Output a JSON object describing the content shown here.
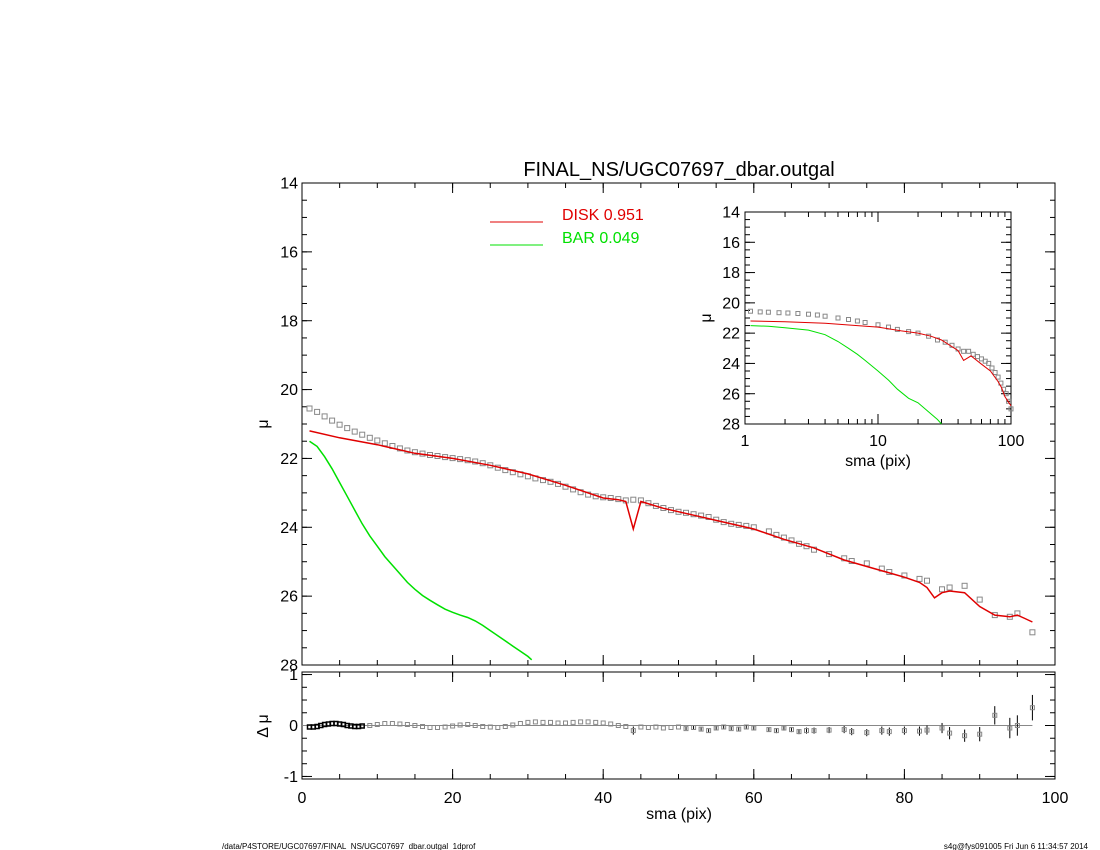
{
  "colors": {
    "disk": "#e00000",
    "bar": "#00e000",
    "data": "#888888",
    "axis": "#000000",
    "error": "#000000"
  },
  "footer": {
    "left": "/data/P4STORE/UGC07697/FINAL_NS/UGC07697_dbar.outgal_1dprof",
    "right": "s4g@fys091005  Fri Jun  6 11:34:57 2014"
  },
  "chart_data": [
    {
      "id": "main",
      "type": "line",
      "title": "FINAL_NS/UGC07697_dbar.outgal",
      "xlabel": "",
      "ylabel": "μ",
      "xlim": [
        0,
        100
      ],
      "ylim": [
        28,
        14
      ],
      "xticks": [
        0,
        20,
        40,
        60,
        80,
        100
      ],
      "yticks": [
        14,
        16,
        18,
        20,
        22,
        24,
        26,
        28
      ],
      "legend": [
        {
          "name": "DISK",
          "value": "0.951",
          "color": "#e00000"
        },
        {
          "name": "BAR",
          "value": "0.049",
          "color": "#00e000"
        }
      ],
      "series": [
        {
          "name": "data",
          "type": "scatter",
          "x": [
            1,
            2,
            3,
            4,
            5,
            6,
            7,
            8,
            9,
            10,
            11,
            12,
            13,
            14,
            15,
            16,
            17,
            18,
            19,
            20,
            21,
            22,
            23,
            24,
            25,
            26,
            27,
            28,
            29,
            30,
            31,
            32,
            33,
            34,
            35,
            36,
            37,
            38,
            39,
            40,
            41,
            42,
            43,
            44,
            45,
            46,
            47,
            48,
            49,
            50,
            51,
            52,
            53,
            54,
            55,
            56,
            57,
            58,
            59,
            60,
            62,
            63,
            64,
            65,
            66,
            67,
            68,
            70,
            72,
            73,
            75,
            77,
            78,
            80,
            82,
            83,
            85,
            86,
            88,
            90,
            92,
            94,
            95,
            97
          ],
          "y": [
            20.55,
            20.65,
            20.78,
            20.9,
            21.02,
            21.12,
            21.22,
            21.31,
            21.4,
            21.48,
            21.56,
            21.64,
            21.71,
            21.77,
            21.82,
            21.86,
            21.9,
            21.93,
            21.96,
            21.99,
            22.02,
            22.05,
            22.09,
            22.14,
            22.2,
            22.27,
            22.34,
            22.4,
            22.46,
            22.52,
            22.58,
            22.63,
            22.68,
            22.74,
            22.82,
            22.9,
            22.98,
            23.05,
            23.1,
            23.13,
            23.15,
            23.18,
            23.22,
            23.2,
            23.22,
            23.3,
            23.38,
            23.44,
            23.5,
            23.55,
            23.58,
            23.62,
            23.66,
            23.7,
            23.78,
            23.85,
            23.9,
            23.93,
            23.96,
            24.0,
            24.12,
            24.22,
            24.3,
            24.38,
            24.48,
            24.55,
            24.65,
            24.78,
            24.9,
            24.98,
            25.05,
            25.2,
            25.3,
            25.4,
            25.5,
            25.55,
            25.8,
            25.75,
            25.7,
            26.1,
            26.55,
            26.6,
            26.5,
            27.05
          ]
        },
        {
          "name": "DISK",
          "x": [
            1,
            5,
            10,
            15,
            20,
            25,
            30,
            35,
            40,
            42,
            43,
            44,
            45,
            48,
            52,
            56,
            60,
            64,
            68,
            72,
            76,
            80,
            82,
            83,
            84,
            85,
            86,
            88,
            90,
            92,
            94,
            95,
            96,
            97
          ],
          "y": [
            21.2,
            21.4,
            21.6,
            21.85,
            22.0,
            22.2,
            22.45,
            22.78,
            23.15,
            23.2,
            23.25,
            24.05,
            23.25,
            23.45,
            23.65,
            23.85,
            24.05,
            24.35,
            24.6,
            24.95,
            25.2,
            25.45,
            25.6,
            25.75,
            26.05,
            25.9,
            25.85,
            25.9,
            26.3,
            26.55,
            26.6,
            26.55,
            26.65,
            26.75
          ]
        },
        {
          "name": "BAR",
          "x": [
            1,
            2,
            3,
            4,
            5,
            6,
            7,
            8,
            9,
            10,
            11,
            12,
            13,
            14,
            15,
            16,
            17,
            18,
            19,
            20,
            21,
            22,
            23,
            24,
            25,
            26,
            27,
            28,
            29,
            30,
            30.5
          ],
          "y": [
            21.5,
            21.65,
            21.95,
            22.3,
            22.7,
            23.1,
            23.5,
            23.9,
            24.25,
            24.55,
            24.85,
            25.1,
            25.35,
            25.6,
            25.8,
            25.98,
            26.12,
            26.25,
            26.38,
            26.47,
            26.55,
            26.62,
            26.72,
            26.85,
            27.0,
            27.15,
            27.3,
            27.45,
            27.6,
            27.75,
            27.85
          ]
        }
      ]
    },
    {
      "id": "inset",
      "type": "line",
      "xlabel": "sma (pix)",
      "ylabel": "μ",
      "xscale": "log",
      "xlim": [
        1,
        100
      ],
      "ylim": [
        28,
        14
      ],
      "xticks": [
        1,
        10,
        100
      ],
      "yticks": [
        14,
        16,
        18,
        20,
        22,
        24,
        26,
        28
      ],
      "series": [
        {
          "name": "data",
          "type": "scatter",
          "x": [
            1.1,
            1.3,
            1.5,
            1.8,
            2.1,
            2.5,
            3,
            3.5,
            4,
            5,
            6,
            7,
            8,
            10,
            12,
            14,
            17,
            20,
            24,
            28,
            32,
            36,
            40,
            44,
            48,
            52,
            56,
            60,
            64,
            68,
            72,
            76,
            80,
            84,
            88,
            92,
            96,
            100
          ],
          "y": [
            20.55,
            20.6,
            20.62,
            20.65,
            20.67,
            20.7,
            20.75,
            20.8,
            20.88,
            21.0,
            21.1,
            21.2,
            21.3,
            21.45,
            21.6,
            21.75,
            21.9,
            22.0,
            22.2,
            22.45,
            22.6,
            22.8,
            23.05,
            23.2,
            23.2,
            23.4,
            23.55,
            23.7,
            23.85,
            24.0,
            24.3,
            24.6,
            24.9,
            25.3,
            25.7,
            26.0,
            26.5,
            27.0
          ]
        },
        {
          "name": "DISK",
          "x": [
            1.1,
            2,
            4,
            7,
            10,
            15,
            20,
            25,
            30,
            40,
            44,
            50,
            60,
            70,
            80,
            85,
            90,
            95,
            100
          ],
          "y": [
            21.2,
            21.25,
            21.35,
            21.5,
            21.6,
            21.85,
            22.0,
            22.2,
            22.45,
            23.15,
            23.8,
            23.5,
            24.05,
            24.5,
            25.2,
            25.6,
            26.2,
            26.5,
            26.8
          ]
        },
        {
          "name": "BAR",
          "x": [
            1.1,
            1.5,
            2,
            3,
            4,
            5,
            6,
            7,
            8,
            10,
            12,
            14,
            17,
            20,
            24,
            28,
            30
          ],
          "y": [
            21.5,
            21.55,
            21.65,
            21.8,
            22.1,
            22.55,
            23.0,
            23.4,
            23.8,
            24.5,
            25.1,
            25.7,
            26.3,
            26.6,
            27.2,
            27.7,
            28.0
          ]
        }
      ]
    },
    {
      "id": "residual",
      "type": "scatter",
      "xlabel": "sma (pix)",
      "ylabel": "Δ μ",
      "xlim": [
        0,
        100
      ],
      "ylim": [
        -1.05,
        1.05
      ],
      "xticks": [
        0,
        20,
        40,
        60,
        80,
        100
      ],
      "yticks": [
        -1,
        0,
        1
      ],
      "series": [
        {
          "name": "residual",
          "x": [
            1,
            1.5,
            2,
            2.5,
            3,
            3.5,
            4,
            4.5,
            5,
            5.5,
            6,
            6.5,
            7,
            7.5,
            8,
            9,
            10,
            11,
            12,
            13,
            14,
            15,
            16,
            17,
            18,
            19,
            20,
            21,
            22,
            23,
            24,
            25,
            26,
            27,
            28,
            29,
            30,
            31,
            32,
            33,
            34,
            35,
            36,
            37,
            38,
            39,
            40,
            41,
            42,
            43,
            44,
            45,
            46,
            47,
            48,
            49,
            50,
            51,
            52,
            53,
            54,
            55,
            56,
            57,
            58,
            59,
            60,
            62,
            63,
            64,
            65,
            66,
            67,
            68,
            70,
            72,
            73,
            75,
            77,
            78,
            80,
            82,
            83,
            85,
            86,
            88,
            90,
            92,
            94,
            95,
            97
          ],
          "y": [
            -0.03,
            -0.03,
            -0.02,
            0.0,
            0.02,
            0.03,
            0.04,
            0.04,
            0.03,
            0.02,
            0.0,
            -0.01,
            -0.02,
            -0.02,
            -0.01,
            0.0,
            0.02,
            0.04,
            0.04,
            0.03,
            0.02,
            0.0,
            -0.02,
            -0.04,
            -0.04,
            -0.03,
            -0.01,
            0.01,
            0.02,
            0.0,
            -0.02,
            -0.03,
            -0.04,
            -0.02,
            0.01,
            0.04,
            0.06,
            0.07,
            0.06,
            0.06,
            0.05,
            0.05,
            0.06,
            0.07,
            0.07,
            0.06,
            0.05,
            0.03,
            0.0,
            -0.02,
            -0.1,
            -0.03,
            -0.04,
            -0.03,
            -0.05,
            -0.04,
            -0.03,
            -0.06,
            -0.04,
            -0.07,
            -0.1,
            -0.05,
            -0.03,
            -0.06,
            -0.07,
            -0.03,
            -0.05,
            -0.08,
            -0.1,
            -0.05,
            -0.08,
            -0.12,
            -0.1,
            -0.1,
            -0.09,
            -0.08,
            -0.12,
            -0.14,
            -0.1,
            -0.12,
            -0.1,
            -0.11,
            -0.09,
            -0.05,
            -0.15,
            -0.2,
            -0.17,
            0.2,
            -0.05,
            0.0,
            0.35
          ],
          "err": [
            0.01,
            0.01,
            0.01,
            0.01,
            0.01,
            0.01,
            0.01,
            0.01,
            0.01,
            0.01,
            0.01,
            0.01,
            0.01,
            0.01,
            0.01,
            0.01,
            0.01,
            0.01,
            0.01,
            0.01,
            0.01,
            0.01,
            0.01,
            0.01,
            0.01,
            0.01,
            0.01,
            0.01,
            0.01,
            0.01,
            0.01,
            0.01,
            0.01,
            0.01,
            0.01,
            0.01,
            0.01,
            0.01,
            0.01,
            0.01,
            0.01,
            0.01,
            0.01,
            0.01,
            0.01,
            0.01,
            0.01,
            0.01,
            0.01,
            0.01,
            0.08,
            0.02,
            0.02,
            0.02,
            0.02,
            0.02,
            0.02,
            0.03,
            0.03,
            0.03,
            0.03,
            0.03,
            0.03,
            0.03,
            0.04,
            0.04,
            0.04,
            0.04,
            0.05,
            0.05,
            0.05,
            0.05,
            0.06,
            0.06,
            0.06,
            0.07,
            0.07,
            0.07,
            0.08,
            0.08,
            0.08,
            0.09,
            0.09,
            0.1,
            0.12,
            0.12,
            0.14,
            0.18,
            0.2,
            0.2,
            0.25
          ]
        }
      ]
    }
  ]
}
